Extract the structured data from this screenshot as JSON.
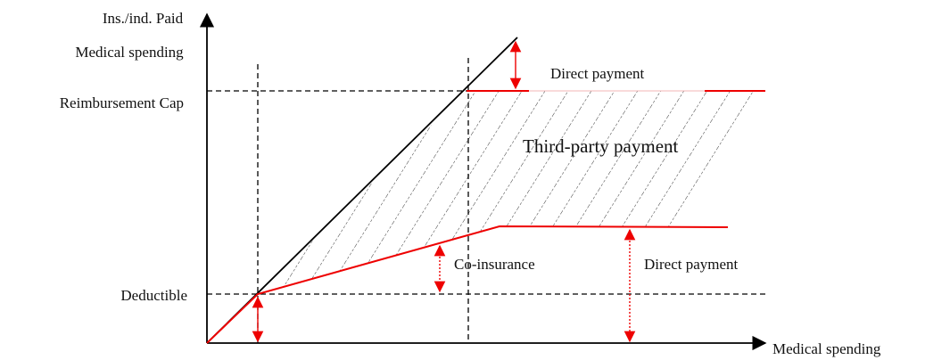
{
  "y_axis_label": [
    "Ins./ind. Paid",
    "Medical spending"
  ],
  "x_axis_label": "Medical spending",
  "levels": {
    "cap": "Reimbursement Cap",
    "deductible": "Deductible"
  },
  "regions": {
    "direct_top": "Direct payment",
    "third_party": "Third-party payment",
    "coinsurance": "Co-insurance",
    "direct_bottom": "Direct payment"
  }
}
